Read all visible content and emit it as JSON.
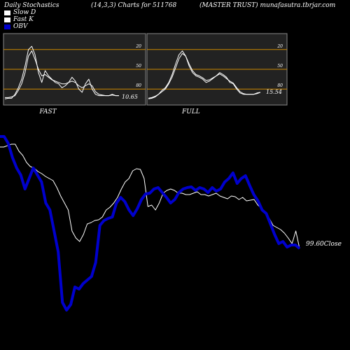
{
  "header": {
    "left": "Daily Stochastics",
    "middle": "(14,3,3) Charts for 511768",
    "right": "(MASTER TRUST) munafasutra.tbrjar.com"
  },
  "legend": [
    {
      "label": "Slow  D",
      "color": "#ffffff"
    },
    {
      "label": "Fast K",
      "color": "#ffffff"
    },
    {
      "label": "OBV",
      "color": "#0000cc"
    }
  ],
  "chart_data": [
    {
      "type": "line",
      "title": "FAST",
      "ylim": [
        0,
        100
      ],
      "levels": [
        20,
        50,
        80
      ],
      "level_color": "#cc8800",
      "tick_labels": [
        "80",
        "50",
        "20"
      ],
      "last_value_label": "10.65",
      "series": [
        {
          "values": [
            5,
            6,
            6,
            12,
            22,
            35,
            55,
            80,
            85,
            72,
            45,
            30,
            48,
            40,
            35,
            30,
            28,
            22,
            25,
            30,
            38,
            32,
            20,
            15,
            28,
            35,
            20,
            12,
            10,
            10,
            10,
            10,
            12,
            10,
            10
          ]
        },
        {
          "values": [
            7,
            7,
            8,
            10,
            18,
            28,
            45,
            70,
            78,
            65,
            50,
            40,
            42,
            38,
            34,
            32,
            30,
            28,
            28,
            30,
            32,
            30,
            25,
            22,
            25,
            28,
            25,
            16,
            12,
            11,
            10,
            10,
            11,
            10,
            10
          ]
        }
      ]
    },
    {
      "type": "line",
      "title": "FULL",
      "ylim": [
        0,
        100
      ],
      "levels": [
        20,
        50,
        80
      ],
      "level_color": "#cc8800",
      "tick_labels": [
        "80",
        "50",
        "20"
      ],
      "last_value_label": "15.54",
      "series": [
        {
          "values": [
            5,
            6,
            8,
            12,
            18,
            22,
            30,
            42,
            58,
            72,
            78,
            70,
            55,
            45,
            40,
            38,
            35,
            30,
            32,
            36,
            40,
            45,
            42,
            38,
            30,
            28,
            20,
            14,
            12,
            12,
            12,
            12,
            14,
            15
          ]
        },
        {
          "values": [
            6,
            7,
            9,
            12,
            16,
            20,
            28,
            38,
            52,
            66,
            74,
            70,
            58,
            48,
            42,
            40,
            37,
            33,
            34,
            37,
            40,
            43,
            40,
            36,
            32,
            29,
            22,
            16,
            13,
            12,
            12,
            12,
            13,
            15
          ]
        }
      ]
    },
    {
      "type": "line",
      "last_value_label": "99.60Close",
      "series": [
        {
          "name": "Close",
          "values": [
            210,
            210,
            208,
            206,
            206,
            216,
            222,
            232,
            238,
            240,
            245,
            248,
            252,
            255,
            258,
            268,
            280,
            290,
            300,
            330,
            340,
            345,
            335,
            320,
            318,
            315,
            314,
            310,
            300,
            296,
            290,
            282,
            270,
            260,
            255,
            244,
            241,
            242,
            255,
            295,
            293,
            300,
            290,
            276,
            272,
            270,
            272,
            276,
            276,
            278,
            278,
            276,
            274,
            278,
            278,
            280,
            278,
            276,
            280,
            282,
            284,
            280,
            281,
            285,
            282,
            287,
            286,
            285,
            293,
            298,
            305,
            312,
            322,
            325,
            328,
            333,
            340,
            348,
            330,
            355
          ]
        },
        {
          "name": "OBV",
          "values": [
            195,
            195,
            205,
            225,
            240,
            250,
            270,
            255,
            240,
            250,
            260,
            290,
            300,
            330,
            360,
            432,
            443,
            435,
            410,
            413,
            405,
            400,
            395,
            375,
            322,
            315,
            312,
            310,
            290,
            282,
            288,
            300,
            308,
            298,
            285,
            277,
            276,
            270,
            268,
            275,
            282,
            290,
            285,
            275,
            270,
            268,
            267,
            272,
            268,
            270,
            275,
            268,
            273,
            270,
            260,
            255,
            247,
            262,
            255,
            251,
            265,
            278,
            287,
            300,
            305,
            320,
            335,
            348,
            345,
            353,
            350,
            350,
            355
          ]
        }
      ]
    }
  ]
}
